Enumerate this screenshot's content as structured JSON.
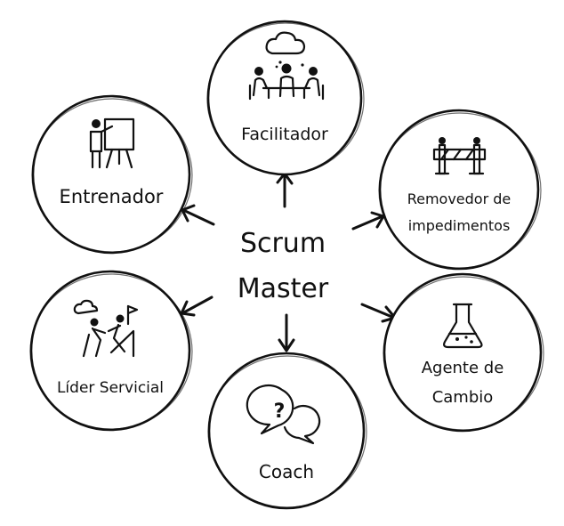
{
  "center": {
    "line1": "Scrum",
    "line2": "Master"
  },
  "roles": {
    "facilitador": {
      "label": "Facilitador",
      "icon": "meeting-icon"
    },
    "entrenador": {
      "label": "Entrenador",
      "icon": "presentation-icon"
    },
    "removedor": {
      "line1": "Removedor de",
      "line2": "impedimentos",
      "icon": "barrier-icon"
    },
    "lider": {
      "label": "Líder Servicial",
      "icon": "climbing-help-icon"
    },
    "coach": {
      "label": "Coach",
      "icon": "question-chat-icon"
    },
    "agente": {
      "line1": "Agente de",
      "line2": "Cambio",
      "icon": "flask-icon"
    }
  }
}
